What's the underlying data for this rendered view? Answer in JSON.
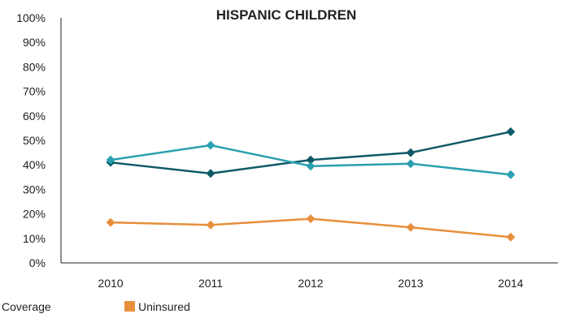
{
  "chart_data": {
    "type": "line",
    "title": "HISPANIC CHILDREN",
    "categories": [
      "2010",
      "2011",
      "2012",
      "2013",
      "2014"
    ],
    "ylim": [
      0,
      100
    ],
    "yticks": [
      "0%",
      "10%",
      "20%",
      "30%",
      "40%",
      "50%",
      "60%",
      "70%",
      "80%",
      "90%",
      "100%"
    ],
    "grid": false,
    "legend_position": "bottom",
    "series": [
      {
        "name": "",
        "color": "#0f5a68",
        "values": [
          41,
          36.5,
          42,
          45,
          53.5
        ]
      },
      {
        "name": "",
        "color": "#2aa0b0",
        "values": [
          42,
          48,
          39.5,
          40.5,
          36
        ]
      },
      {
        "name": "Uninsured",
        "color": "#e88f3c",
        "values": [
          16.5,
          15.5,
          18,
          14.5,
          10.5
        ]
      }
    ],
    "legend": [
      {
        "label": "Coverage",
        "color": "#2aa0b0"
      },
      {
        "label": "Uninsured",
        "color": "#e88f3c"
      }
    ]
  }
}
